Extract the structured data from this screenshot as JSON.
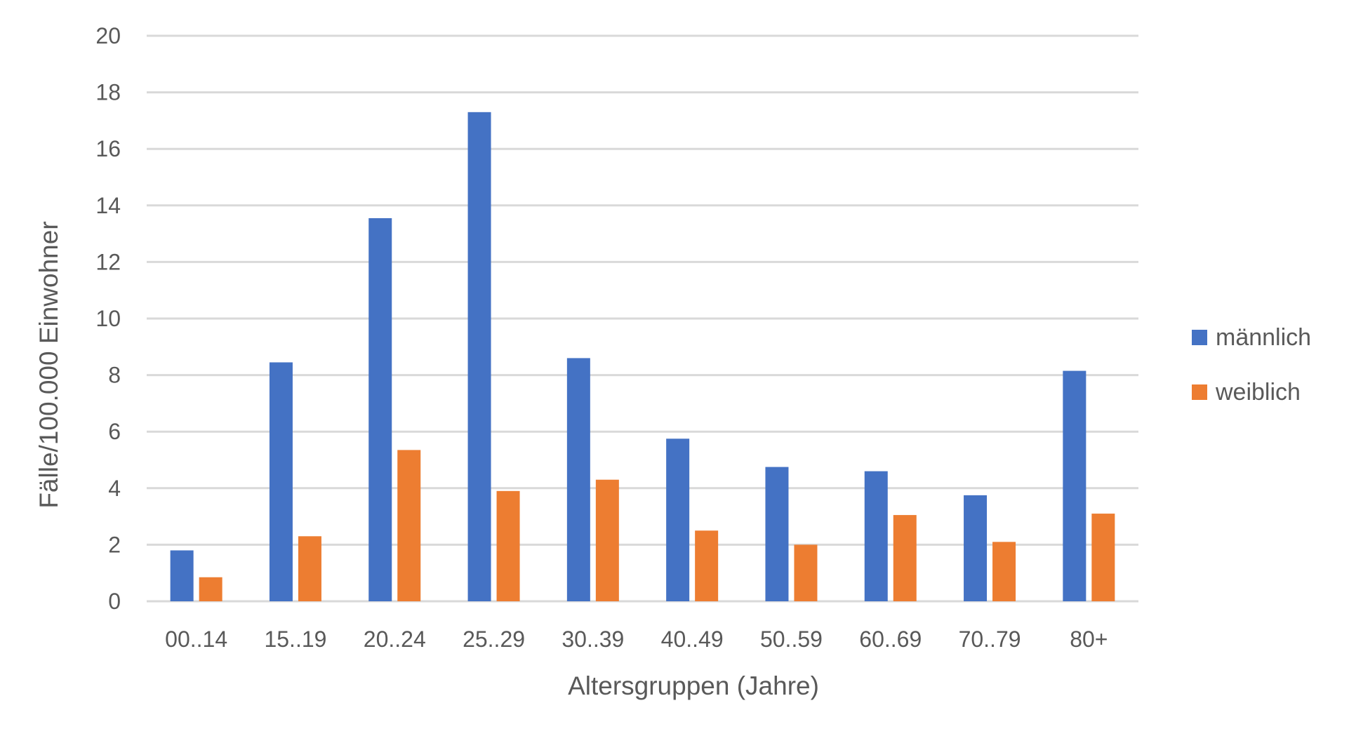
{
  "chart_data": {
    "type": "bar",
    "title": "",
    "xlabel": "Altersgruppen (Jahre)",
    "ylabel": "Fälle/100.000 Einwohner",
    "ylim": [
      0,
      20
    ],
    "yticks": [
      0,
      2,
      4,
      6,
      8,
      10,
      12,
      14,
      16,
      18,
      20
    ],
    "grid": true,
    "legend_position": "right",
    "categories": [
      "00..14",
      "15..19",
      "20..24",
      "25..29",
      "30..39",
      "40..49",
      "50..59",
      "60..69",
      "70..79",
      "80+"
    ],
    "series": [
      {
        "name": "männlich",
        "color": "#4472C4",
        "values": [
          1.8,
          8.45,
          13.55,
          17.3,
          8.6,
          5.75,
          4.75,
          4.6,
          3.75,
          8.15
        ]
      },
      {
        "name": "weiblich",
        "color": "#ED7D31",
        "values": [
          0.85,
          2.3,
          5.35,
          3.9,
          4.3,
          2.5,
          2.0,
          3.05,
          2.1,
          3.1
        ]
      }
    ]
  },
  "legend": {
    "items": [
      {
        "label": "männlich",
        "color": "#4472C4"
      },
      {
        "label": "weiblich",
        "color": "#ED7D31"
      }
    ]
  },
  "axes": {
    "x_title": "Altersgruppen (Jahre)",
    "y_title": "Fälle/100.000 Einwohner"
  },
  "colors": {
    "gridline": "#D9D9D9",
    "text": "#595959"
  }
}
